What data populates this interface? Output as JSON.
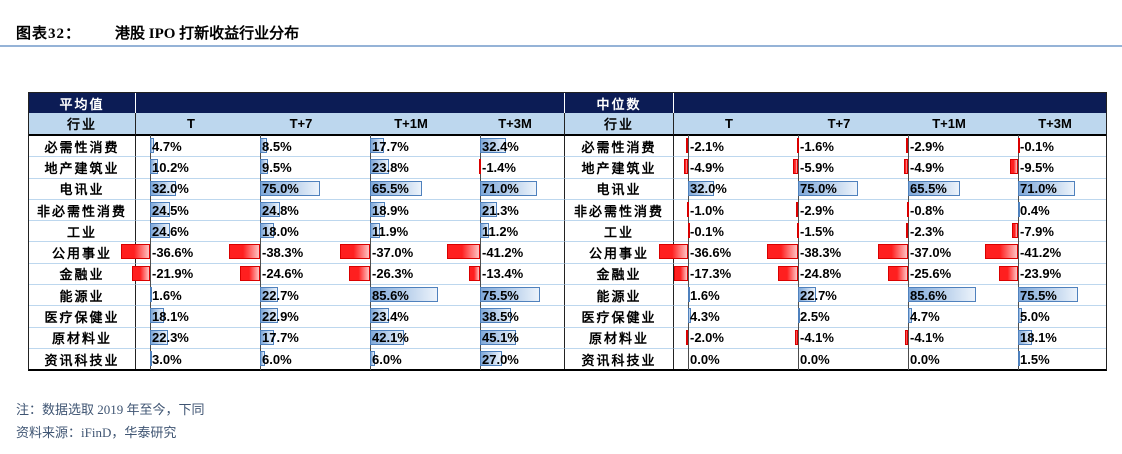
{
  "title": {
    "exhibit_label": "图表32：",
    "text": "港股 IPO 打新收益行业分布"
  },
  "notes": {
    "note1": "注：数据选取 2019 年至今，下同",
    "note2": "资料来源：iFinD，华泰研究"
  },
  "chart_data": {
    "type": "table",
    "title": "图表32：港股 IPO 打新收益行业分布",
    "value_format": "percent",
    "bar_style": {
      "positive_color": "#7fa8d9",
      "positive_border": "#4f81bd",
      "negative_color": "#ff1f1f",
      "negative_border": "#d90000",
      "header_navy": "#0c1c55",
      "header_lightblue": "#bdd7ee"
    },
    "industry_header": "行业",
    "columns": [
      "T",
      "T+7",
      "T+1M",
      "T+3M"
    ],
    "tables": [
      {
        "group_label": "平均值",
        "rows": [
          {
            "industry": "必需性消费",
            "values": [
              4.7,
              8.5,
              17.7,
              32.4
            ]
          },
          {
            "industry": "地产建筑业",
            "values": [
              10.2,
              9.5,
              23.8,
              -1.4
            ]
          },
          {
            "industry": "电讯业",
            "values": [
              32.0,
              75.0,
              65.5,
              71.0
            ]
          },
          {
            "industry": "非必需性消费",
            "values": [
              24.5,
              24.8,
              18.9,
              21.3
            ]
          },
          {
            "industry": "工业",
            "values": [
              24.6,
              18.0,
              11.9,
              11.2
            ]
          },
          {
            "industry": "公用事业",
            "values": [
              -36.6,
              -38.3,
              -37.0,
              -41.2
            ]
          },
          {
            "industry": "金融业",
            "values": [
              -21.9,
              -24.6,
              -26.3,
              -13.4
            ]
          },
          {
            "industry": "能源业",
            "values": [
              1.6,
              22.7,
              85.6,
              75.5
            ]
          },
          {
            "industry": "医疗保健业",
            "values": [
              18.1,
              22.9,
              23.4,
              38.5
            ]
          },
          {
            "industry": "原材料业",
            "values": [
              22.3,
              17.7,
              42.1,
              45.1
            ]
          },
          {
            "industry": "资讯科技业",
            "values": [
              3.0,
              6.0,
              6.0,
              27.0
            ]
          }
        ]
      },
      {
        "group_label": "中位数",
        "rows": [
          {
            "industry": "必需性消费",
            "values": [
              -2.1,
              -1.6,
              -2.9,
              -0.1
            ]
          },
          {
            "industry": "地产建筑业",
            "values": [
              -4.9,
              -5.9,
              -4.9,
              -9.5
            ]
          },
          {
            "industry": "电讯业",
            "values": [
              32.0,
              75.0,
              65.5,
              71.0
            ]
          },
          {
            "industry": "非必需性消费",
            "values": [
              -1.0,
              -2.9,
              -0.8,
              0.4
            ]
          },
          {
            "industry": "工业",
            "values": [
              -0.1,
              -1.5,
              -2.3,
              -7.9
            ]
          },
          {
            "industry": "公用事业",
            "values": [
              -36.6,
              -38.3,
              -37.0,
              -41.2
            ]
          },
          {
            "industry": "金融业",
            "values": [
              -17.3,
              -24.8,
              -25.6,
              -23.9
            ]
          },
          {
            "industry": "能源业",
            "values": [
              1.6,
              22.7,
              85.6,
              75.5
            ]
          },
          {
            "industry": "医疗保健业",
            "values": [
              4.3,
              2.5,
              4.7,
              5.0
            ]
          },
          {
            "industry": "原材料业",
            "values": [
              -2.0,
              -4.1,
              -4.1,
              18.1
            ]
          },
          {
            "industry": "资讯科技业",
            "values": [
              0.0,
              0.0,
              0.0,
              1.5
            ]
          }
        ]
      }
    ]
  }
}
